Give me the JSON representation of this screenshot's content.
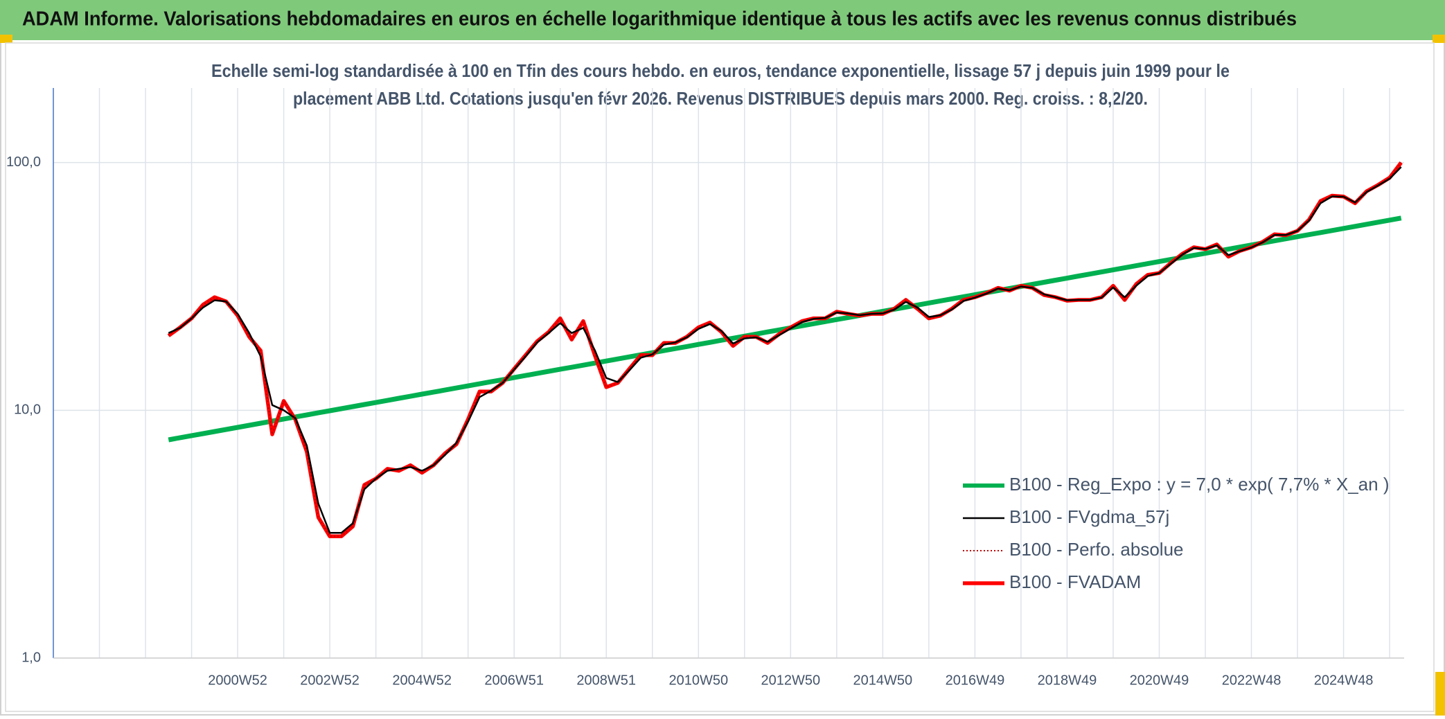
{
  "chart_data": {
    "type": "line",
    "title": "ADAM Informe. Valorisations hebdomadaires en euros en échelle logarithmique identique à tous les actifs avec les revenus connus distribués",
    "subtitle": [
      "Echelle semi-log standardisée à 100 en Tfin des cours hebdo. en euros, tendance exponentielle, lissage 57 j depuis juin 1999 pour le",
      "placement ABB Ltd. Cotations jusqu'en févr 2026. Revenus DISTRIBUES depuis mars 2000. Reg. croiss. : 8,2/20."
    ],
    "categories": [
      null,
      null,
      null,
      null,
      null,
      null,
      null,
      null,
      null,
      null,
      null,
      null,
      null,
      null,
      null,
      null,
      "2000W52",
      null,
      null,
      null,
      null,
      null,
      null,
      null,
      "2002W52",
      null,
      null,
      null,
      null,
      null,
      null,
      null,
      "2004W52",
      null,
      null,
      null,
      null,
      null,
      null,
      null,
      "2006W51",
      null,
      null,
      null,
      null,
      null,
      null,
      null,
      "2008W51",
      null,
      null,
      null,
      null,
      null,
      null,
      null,
      "2010W50",
      null,
      null,
      null,
      null,
      null,
      null,
      null,
      "2012W50",
      null,
      null,
      null,
      null,
      null,
      null,
      null,
      "2014W50",
      null,
      null,
      null,
      null,
      null,
      null,
      null,
      "2016W49",
      null,
      null,
      null,
      null,
      null,
      null,
      null,
      "2018W49",
      null,
      null,
      null,
      null,
      null,
      null,
      null,
      "2020W49",
      null,
      null,
      null,
      null,
      null,
      null,
      null,
      "2022W48",
      null,
      null,
      null,
      null,
      null,
      null,
      null,
      "2024W48",
      null,
      null,
      null,
      null,
      null
    ],
    "log_scale": true,
    "ylim": [
      1,
      200
    ],
    "yticks": [
      {
        "value": 1,
        "label": "1,0"
      },
      {
        "value": 10,
        "label": "10,0"
      },
      {
        "value": 100,
        "label": "100,0"
      }
    ],
    "grid": true,
    "legend": "lower right",
    "series": [
      {
        "name": "B100 - Reg_Expo : y = 7,0 * exp( 7,7% *  X_an )",
        "color": "#00b050",
        "line_style": "solid",
        "values": [
          null,
          null,
          null,
          null,
          null,
          null,
          null,
          null,
          null,
          null,
          7.6,
          7.75,
          7.9,
          8.05,
          8.21,
          8.37,
          8.53,
          8.7,
          8.87,
          9.04,
          9.22,
          9.4,
          9.58,
          9.77,
          9.96,
          10.15,
          10.35,
          10.55,
          10.75,
          10.96,
          11.18,
          11.39,
          11.62,
          11.84,
          12.07,
          12.31,
          12.55,
          12.79,
          13.04,
          13.29,
          13.55,
          13.82,
          14.09,
          14.36,
          14.64,
          14.92,
          15.21,
          15.51,
          15.81,
          16.12,
          16.43,
          16.75,
          17.08,
          17.41,
          17.75,
          18.09,
          18.45,
          18.8,
          19.17,
          19.54,
          19.92,
          20.31,
          20.71,
          21.11,
          21.52,
          21.94,
          22.36,
          22.8,
          23.24,
          23.69,
          24.15,
          24.62,
          25.1,
          25.59,
          26.09,
          26.59,
          27.11,
          27.64,
          28.17,
          28.72,
          29.28,
          29.85,
          30.43,
          31.02,
          31.62,
          32.24,
          32.86,
          33.5,
          34.15,
          34.82,
          35.49,
          36.18,
          36.89,
          37.6,
          38.33,
          39.08,
          39.84,
          40.61,
          41.4,
          42.21,
          43.03,
          43.86,
          44.71,
          45.58,
          46.47,
          47.37,
          48.29,
          49.23,
          50.19,
          51.17,
          52.16,
          53.18,
          54.21,
          55.27,
          56.34,
          57.44,
          58.55,
          59.69
        ]
      },
      {
        "name": "B100 - FVgdma_57j",
        "color": "#000000",
        "line_style": "solid",
        "values": [
          null,
          null,
          null,
          null,
          null,
          null,
          null,
          null,
          null,
          null,
          20.5,
          21.5,
          23.5,
          26,
          27.8,
          27.5,
          24.5,
          20.5,
          16.5,
          10.5,
          10,
          9.3,
          7.2,
          4.2,
          3.2,
          3.2,
          3.5,
          4.8,
          5.3,
          5.7,
          5.8,
          5.9,
          5.7,
          6,
          6.6,
          7.4,
          9,
          11.3,
          12,
          12.9,
          14.6,
          16.5,
          18.8,
          20.5,
          22.5,
          20.5,
          21.5,
          17.5,
          13.5,
          13,
          14.5,
          16.3,
          16.8,
          18.4,
          18.8,
          19.7,
          21.3,
          22.3,
          20.9,
          18.6,
          19.5,
          19.7,
          18.9,
          20.1,
          21.4,
          22.7,
          23.4,
          23.6,
          24.8,
          24.6,
          24.2,
          24.5,
          24.6,
          25.5,
          27.4,
          26,
          23.8,
          24.2,
          25.5,
          27.6,
          28.5,
          29.6,
          31,
          30.5,
          31.6,
          31.2,
          29.4,
          28.6,
          27.8,
          27.9,
          27.9,
          28.5,
          31.3,
          28.6,
          31.8,
          34.8,
          35.8,
          39,
          42.5,
          45.2,
          44.8,
          46.3,
          42.3,
          43.9,
          45.4,
          47.7,
          51,
          51,
          53,
          58.3,
          68.5,
          73,
          72.8,
          69,
          76,
          80.8,
          86,
          96
        ]
      },
      {
        "name": "B100 - Perfo. absolue",
        "color": "#c00000",
        "line_style": "dotted",
        "values": [
          null,
          null,
          null,
          null,
          null,
          null,
          null,
          null,
          null,
          null,
          20,
          21.6,
          23.5,
          26.7,
          28.6,
          27.5,
          24.1,
          19.8,
          17.4,
          8,
          10.9,
          9.2,
          6.8,
          3.7,
          3.1,
          3.1,
          3.4,
          5,
          5.3,
          5.8,
          5.7,
          6,
          5.6,
          6,
          6.7,
          7.3,
          9.2,
          11.9,
          11.9,
          12.9,
          14.7,
          16.7,
          19,
          20.7,
          23.5,
          19.3,
          22.9,
          16.7,
          12.4,
          12.9,
          14.7,
          16.7,
          16.7,
          18.7,
          18.7,
          19.8,
          21.6,
          22.6,
          20.7,
          18.2,
          19.8,
          19.8,
          18.7,
          20.3,
          21.6,
          22.9,
          23.5,
          23.5,
          25,
          24.5,
          24.1,
          24.5,
          24.5,
          25.7,
          27.9,
          25.7,
          23.5,
          24.1,
          25.7,
          27.9,
          28.6,
          29.7,
          31.2,
          30.4,
          31.8,
          31.2,
          29.2,
          28.6,
          27.7,
          27.9,
          27.9,
          28.6,
          31.8,
          27.9,
          32.3,
          35.2,
          35.8,
          39.3,
          42.8,
          45.5,
          44.7,
          46.7,
          41.7,
          44,
          45.5,
          47.9,
          51.3,
          50.9,
          53,
          58.8,
          69.9,
          73.5,
          72.9,
          68.5,
          76.6,
          81.2,
          86.9,
          100
        ]
      },
      {
        "name": "B100 - FVADAM",
        "color": "#ff0000",
        "line_style": "solid",
        "values": [
          null,
          null,
          null,
          null,
          null,
          null,
          null,
          null,
          null,
          null,
          20,
          21.6,
          23.5,
          26.7,
          28.6,
          27.5,
          24.1,
          19.8,
          17.4,
          8,
          10.9,
          9.2,
          6.8,
          3.7,
          3.1,
          3.1,
          3.4,
          5,
          5.3,
          5.8,
          5.7,
          6,
          5.6,
          6,
          6.7,
          7.3,
          9.2,
          11.9,
          11.9,
          12.9,
          14.7,
          16.7,
          19,
          20.7,
          23.5,
          19.3,
          22.9,
          16.7,
          12.4,
          12.9,
          14.7,
          16.7,
          16.7,
          18.7,
          18.7,
          19.8,
          21.6,
          22.6,
          20.7,
          18.2,
          19.8,
          19.8,
          18.7,
          20.3,
          21.6,
          22.9,
          23.5,
          23.5,
          25,
          24.5,
          24.1,
          24.5,
          24.5,
          25.7,
          27.9,
          25.7,
          23.5,
          24.1,
          25.7,
          27.9,
          28.6,
          29.7,
          31.2,
          30.4,
          31.8,
          31.2,
          29.2,
          28.6,
          27.7,
          27.9,
          27.9,
          28.6,
          31.8,
          27.9,
          32.3,
          35.2,
          35.8,
          39.3,
          42.8,
          45.5,
          44.7,
          46.7,
          41.7,
          44,
          45.5,
          47.9,
          51.3,
          50.9,
          53,
          58.8,
          69.9,
          73.5,
          72.9,
          68.5,
          76.6,
          81.2,
          86.9,
          100
        ]
      }
    ]
  }
}
